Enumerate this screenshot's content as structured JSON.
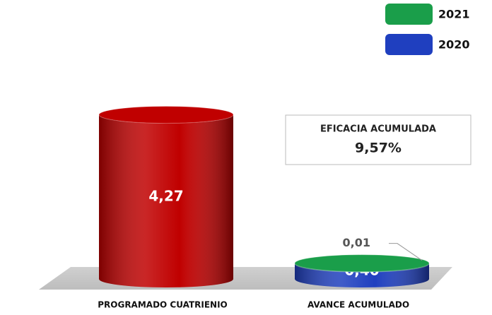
{
  "chart_data": {
    "type": "cylinder",
    "categories": [
      "PROGRAMADO CUATRIENIO",
      "AVANCE ACUMULADO"
    ],
    "series": [
      {
        "color": "#c00000",
        "values": [
          4.27,
          null
        ],
        "value_labels": [
          "4,27",
          null
        ]
      },
      {
        "name": "2020",
        "color": "#1f3fbf",
        "values": [
          null,
          0.4
        ],
        "value_labels": [
          null,
          "0,40"
        ]
      },
      {
        "name": "2021",
        "color": "#1a9e4a",
        "values": [
          null,
          0.01
        ],
        "value_labels": [
          null,
          "0,01"
        ]
      }
    ],
    "ylim": [
      0,
      4.5
    ],
    "annotation": [
      "EFICACIA ACUMULADA",
      "9,57%"
    ]
  }
}
